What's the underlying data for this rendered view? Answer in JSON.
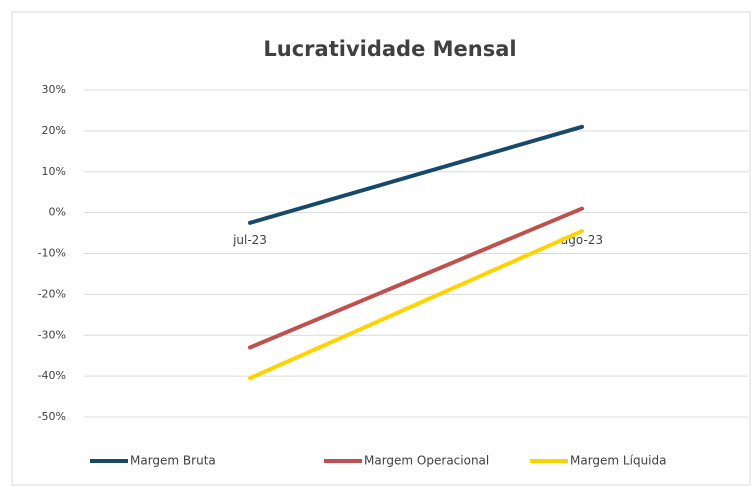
{
  "chart_data": {
    "type": "line",
    "title": "Lucratividade Mensal",
    "categories": [
      "jul-23",
      "ago-23"
    ],
    "series": [
      {
        "name": "Margem Bruta",
        "color": "#17496b",
        "values": [
          -2.5,
          21
        ]
      },
      {
        "name": "Margem Operacional",
        "color": "#c0504d",
        "values": [
          -33,
          1
        ]
      },
      {
        "name": "Margem Líquida",
        "color": "#ffd300",
        "values": [
          -40.5,
          -4.5
        ]
      }
    ],
    "ylim": [
      -50,
      30
    ],
    "yticks": [
      {
        "value": -50,
        "label": "-50%"
      },
      {
        "value": -40,
        "label": "-40%"
      },
      {
        "value": -30,
        "label": "-30%"
      },
      {
        "value": -20,
        "label": "-20%"
      },
      {
        "value": -10,
        "label": "-10%"
      },
      {
        "value": 0,
        "label": "0%"
      },
      {
        "value": 10,
        "label": "10%"
      },
      {
        "value": 20,
        "label": "20%"
      },
      {
        "value": 30,
        "label": "30%"
      }
    ],
    "grid": true,
    "legend": "bottom"
  }
}
